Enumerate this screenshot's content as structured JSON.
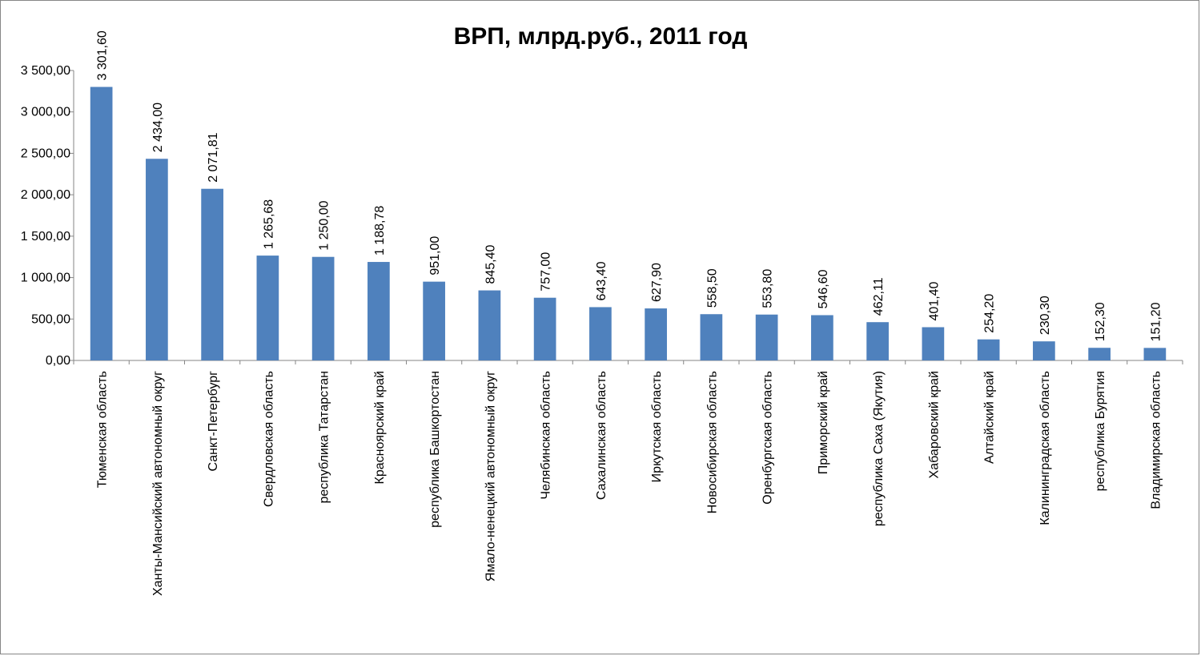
{
  "chart_data": {
    "type": "bar",
    "title": "ВРП, млрд.руб., 2011 год",
    "xlabel": "",
    "ylabel": "",
    "ylim": [
      0,
      3500
    ],
    "y_ticks": [
      0,
      500,
      1000,
      1500,
      2000,
      2500,
      3000,
      3500
    ],
    "y_tick_labels": [
      "0,00",
      "500,00",
      "1 000,00",
      "1 500,00",
      "2 000,00",
      "2 500,00",
      "3 000,00",
      "3 500,00"
    ],
    "grid": false,
    "legend": "none",
    "bar_color": "#4F81BD",
    "categories": [
      "Тюменская область",
      "Ханты-Мансийский автономный округ",
      "Санкт-Петербург",
      "Свердловская область",
      "республика Татарстан",
      "Красноярский край",
      "республика Башкортостан",
      "Ямало-ненецкий автономный округ",
      "Челябинская область",
      "Сахалинская область",
      "Иркутская область",
      "Новосибирская область",
      "Оренбургская область",
      "Приморский край",
      "республика Саха (Якутия)",
      "Хабаровский край",
      "Алтайский край",
      "Калининградская область",
      "республика Бурятия",
      "Владимирская область"
    ],
    "values": [
      3301.6,
      2434.0,
      2071.81,
      1265.68,
      1250.0,
      1188.78,
      951.0,
      845.4,
      757.0,
      643.4,
      627.9,
      558.5,
      553.8,
      546.6,
      462.11,
      401.4,
      254.2,
      230.3,
      152.3,
      151.2
    ],
    "data_labels": [
      "3 301,60",
      "2 434,00",
      "2 071,81",
      "1 265,68",
      "1 250,00",
      "1 188,78",
      "951,00",
      "845,40",
      "757,00",
      "643,40",
      "627,90",
      "558,50",
      "553,80",
      "546,60",
      "462,11",
      "401,40",
      "254,20",
      "230,30",
      "152,30",
      "151,20"
    ]
  }
}
